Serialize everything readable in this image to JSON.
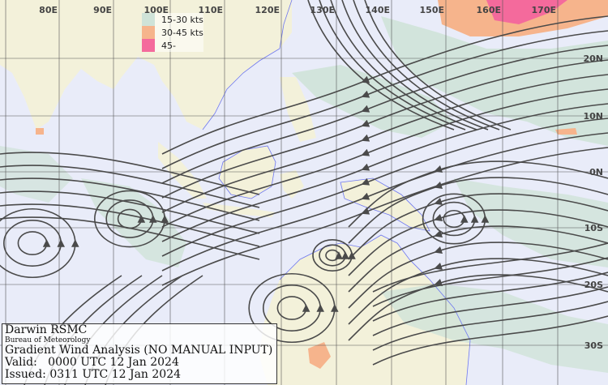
{
  "map": {
    "longitude_labels": [
      "80E",
      "90E",
      "100E",
      "110E",
      "120E",
      "130E",
      "140E",
      "150E",
      "160E",
      "170E"
    ],
    "latitude_labels": [
      "20N",
      "10N",
      "0N",
      "10S",
      "20S",
      "30S"
    ],
    "colors": {
      "ocean": "#e9ecf9",
      "land": "#f3f1da",
      "coast": "#6f78f0",
      "streamline": "#4a4a4a",
      "grid": "#555555"
    }
  },
  "legend": {
    "items": [
      {
        "label": "15-30 kts",
        "color": "#cfe3d8"
      },
      {
        "label": "30-45 kts",
        "color": "#f6b48c"
      },
      {
        "label": "45-",
        "color": "#f46a9c"
      }
    ]
  },
  "info": {
    "center": "Darwin RSMC",
    "agency": "Bureau of Meteorology",
    "product": "Gradient Wind Analysis (NO MANUAL INPUT)",
    "valid": "Valid:   0000 UTC 12 Jan 2024",
    "issued": "Issued: 0311 UTC 12 Jan 2024"
  }
}
